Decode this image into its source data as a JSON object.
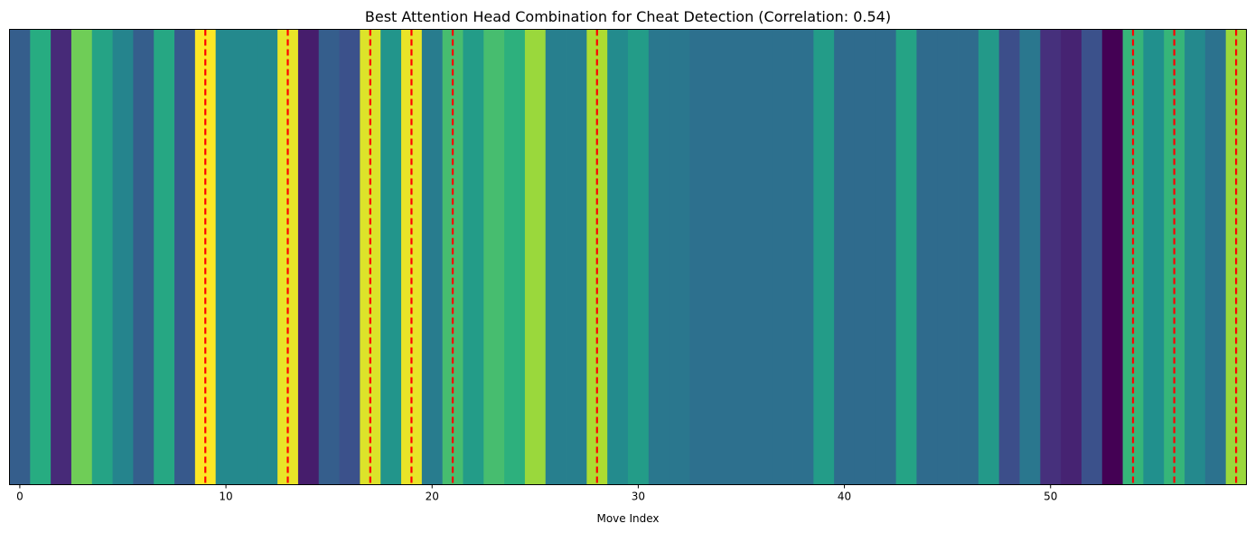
{
  "chart_data": {
    "type": "heatmap",
    "title": "Best Attention Head Combination for Cheat Detection (Correlation: 0.54)",
    "xlabel": "Move Index",
    "ylabel": "",
    "x_ticks": [
      0,
      10,
      20,
      30,
      40,
      50
    ],
    "xlim": [
      -0.5,
      59.5
    ],
    "colormap": "viridis",
    "values": [
      0.3,
      0.62,
      0.12,
      0.78,
      0.58,
      0.45,
      0.3,
      0.6,
      0.28,
      1.0,
      0.47,
      0.47,
      0.47,
      0.97,
      0.08,
      0.3,
      0.25,
      0.95,
      0.52,
      0.97,
      0.42,
      0.7,
      0.55,
      0.7,
      0.64,
      0.85,
      0.43,
      0.43,
      0.88,
      0.48,
      0.55,
      0.4,
      0.4,
      0.37,
      0.37,
      0.37,
      0.37,
      0.37,
      0.37,
      0.55,
      0.35,
      0.35,
      0.35,
      0.58,
      0.35,
      0.35,
      0.35,
      0.54,
      0.24,
      0.4,
      0.14,
      0.1,
      0.25,
      0.0,
      0.66,
      0.5,
      0.66,
      0.47,
      0.38,
      0.85
    ],
    "highlighted_moves": [
      9,
      13,
      17,
      19,
      21,
      28,
      54,
      56,
      59
    ],
    "highlight_color": "#ff0000",
    "y_axis_ticks": false,
    "grid": false
  }
}
